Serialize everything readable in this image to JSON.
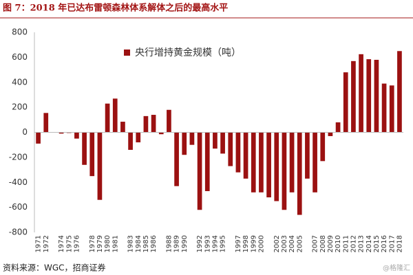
{
  "chart_data": {
    "type": "bar",
    "title": "图 7：2018 年已达布雷顿森林体系解体之后的最高水平",
    "source": "资料来源：WGC，招商证券",
    "watermark": "@格隆汇",
    "categories": [
      "1971",
      "1972",
      null,
      "1974",
      "1975",
      "1976",
      null,
      "1978",
      "1979",
      "1980",
      "1981",
      null,
      "1983",
      "1984",
      "1985",
      "1986",
      null,
      "1988",
      "1989",
      "1990",
      null,
      "1992",
      "1993",
      "1994",
      "1995",
      null,
      "1997",
      "1998",
      "1999",
      "2000",
      null,
      "2002",
      "2003",
      "2004",
      "2005",
      null,
      "2007",
      "2008",
      "2009",
      "2010",
      "2011",
      "2012",
      "2013",
      "2014",
      "2015",
      "2016",
      "2017",
      "2018"
    ],
    "series": [
      {
        "name": "央行增持黄金规模（吨）",
        "color": "#9b1111",
        "values": [
          -90,
          155,
          0,
          -10,
          -5,
          -50,
          -260,
          -350,
          -540,
          230,
          270,
          85,
          -140,
          -80,
          130,
          140,
          -15,
          180,
          -430,
          -180,
          -100,
          -620,
          -470,
          -130,
          -170,
          -270,
          -320,
          -370,
          -480,
          -480,
          -520,
          -550,
          -620,
          -480,
          -660,
          -370,
          -480,
          -230,
          -30,
          80,
          480,
          570,
          625,
          585,
          580,
          390,
          375,
          650
        ]
      }
    ],
    "ylim": [
      -800,
      800
    ],
    "yticks": [
      -800,
      -600,
      -400,
      -200,
      0,
      200,
      400,
      600,
      800
    ],
    "grid": false,
    "legend": "top"
  }
}
